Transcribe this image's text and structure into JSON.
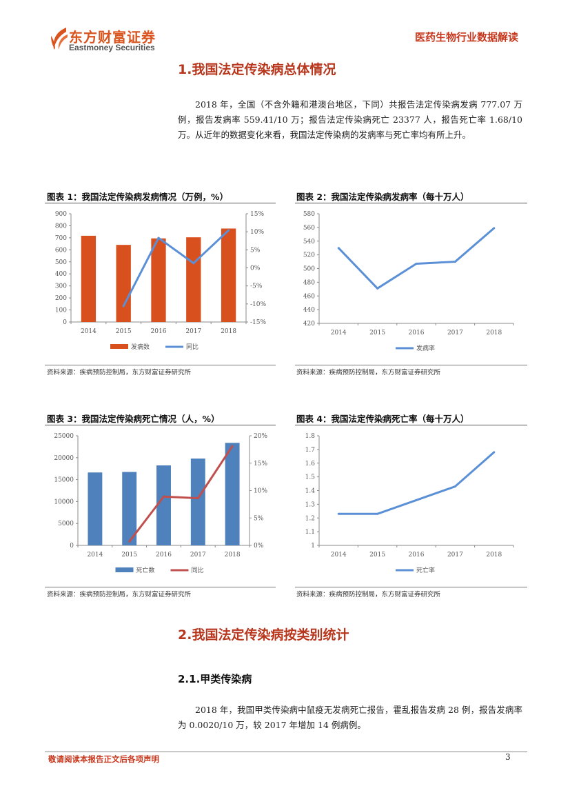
{
  "header": {
    "logo_cn": "东方财富证券",
    "logo_en": "Eastmoney Securities",
    "report_type": "医药生物行业数据解读",
    "brand_color": "#d9541e"
  },
  "section1": {
    "title": "1.我国法定传染病总体情况",
    "paragraph": "2018 年，全国（不含外籍和港澳台地区，下同）共报告法定传染病发病 777.07 万例，报告发病率 559.41/10 万；报告法定传染病死亡 23377 人，报告死亡率 1.68/10 万。从近年的数据变化来看，我国法定传染病的发病率与死亡率均有所上升。"
  },
  "chart_data": [
    {
      "type": "bar+line",
      "title": "图表 1：我国法定传染病发病情况（万例，%）",
      "categories": [
        "2014",
        "2015",
        "2016",
        "2017",
        "2018"
      ],
      "series": [
        {
          "name": "发病数",
          "kind": "bar",
          "axis": "left",
          "color": "#d9501f",
          "values": [
            717,
            641,
            695,
            704,
            777
          ]
        },
        {
          "name": "同比",
          "kind": "line",
          "axis": "right",
          "color": "#5b8fd6",
          "values": [
            null,
            -10.6,
            8.3,
            1.3,
            10.4
          ]
        }
      ],
      "yleft": {
        "lim": [
          0,
          900
        ],
        "ticks": [
          "0",
          "100",
          "200",
          "300",
          "400",
          "500",
          "600",
          "700",
          "800",
          "900"
        ]
      },
      "yright": {
        "lim": [
          -15,
          15
        ],
        "ticks": [
          "-15%",
          "-10%",
          "-5%",
          "0%",
          "5%",
          "10%",
          "15%"
        ]
      },
      "legend": "bottom",
      "grid": false,
      "source": "资料来源：疾病预防控制局，东方财富证券研究所"
    },
    {
      "type": "line",
      "title": "图表 2：我国法定传染病发病率（每十万人）",
      "categories": [
        "2014",
        "2015",
        "2016",
        "2017",
        "2018"
      ],
      "series": [
        {
          "name": "发病率",
          "kind": "line",
          "axis": "left",
          "color": "#5b8fd6",
          "values": [
            530,
            471,
            507,
            510,
            559
          ]
        }
      ],
      "yleft": {
        "lim": [
          420,
          580
        ],
        "ticks": [
          "420",
          "440",
          "460",
          "480",
          "500",
          "520",
          "540",
          "560",
          "580"
        ]
      },
      "legend": "bottom",
      "grid": false,
      "source": "资料来源：疾病预防控制局，东方财富证券研究所"
    },
    {
      "type": "bar+line",
      "title": "图表 3：我国法定传染病死亡情况（人，%）",
      "categories": [
        "2014",
        "2015",
        "2016",
        "2017",
        "2018"
      ],
      "series": [
        {
          "name": "死亡数",
          "kind": "bar",
          "axis": "left",
          "color": "#4f81bd",
          "values": [
            16629,
            16744,
            18237,
            19796,
            23377
          ]
        },
        {
          "name": "同比",
          "kind": "line",
          "axis": "right",
          "color": "#c0504d",
          "values": [
            null,
            0.7,
            8.9,
            8.6,
            18.1
          ]
        }
      ],
      "yleft": {
        "lim": [
          0,
          25000
        ],
        "ticks": [
          "0",
          "5000",
          "10000",
          "15000",
          "20000",
          "25000"
        ]
      },
      "yright": {
        "lim": [
          0,
          20
        ],
        "ticks": [
          "0%",
          "5%",
          "10%",
          "15%",
          "20%"
        ]
      },
      "legend": "bottom",
      "grid": false,
      "source": "资料来源：疾病预防控制局，东方财富证券研究所"
    },
    {
      "type": "line",
      "title": "图表 4：我国法定传染病死亡率（每十万人）",
      "categories": [
        "2014",
        "2015",
        "2016",
        "2017",
        "2018"
      ],
      "series": [
        {
          "name": "死亡率",
          "kind": "line",
          "axis": "left",
          "color": "#5b8fd6",
          "values": [
            1.23,
            1.23,
            1.33,
            1.43,
            1.68
          ]
        }
      ],
      "yleft": {
        "lim": [
          1,
          1.8
        ],
        "ticks": [
          "1",
          "1.1",
          "1.2",
          "1.3",
          "1.4",
          "1.5",
          "1.6",
          "1.7",
          "1.8"
        ]
      },
      "legend": "bottom",
      "grid": false,
      "source": "资料来源：疾病预防控制局，东方财富证券研究所"
    }
  ],
  "section2": {
    "title": "2.我国法定传染病按类别统计",
    "sub1_title": "2.1.甲类传染病",
    "paragraph": "2018 年，我国甲类传染病中鼠疫无发病死亡报告，霍乱报告发病 28 例，报告发病率为 0.0020/10 万，较 2017 年增加 14 例病例。"
  },
  "footer": {
    "disclaimer": "敬请阅读本报告正文后各项声明",
    "page_number": "3"
  }
}
